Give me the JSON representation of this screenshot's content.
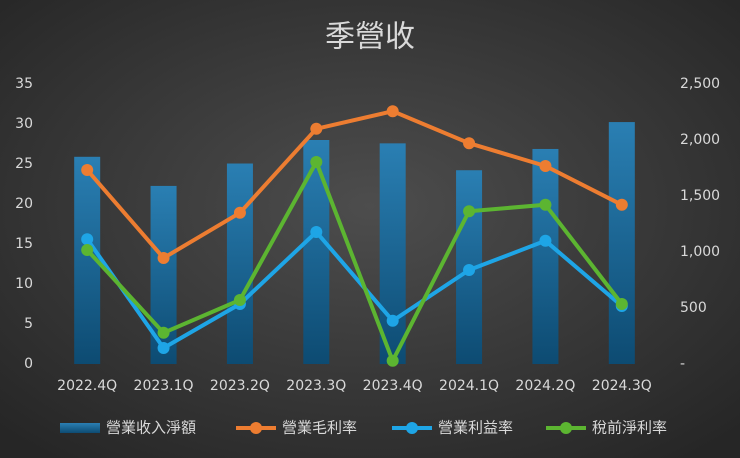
{
  "chart_data": {
    "type": "bar-line",
    "title": "季營收",
    "categories": [
      "2022.4Q",
      "2023.1Q",
      "2023.2Q",
      "2023.3Q",
      "2023.4Q",
      "2024.1Q",
      "2024.2Q",
      "2024.3Q"
    ],
    "series": [
      {
        "name": "營業收入淨額",
        "type": "bar",
        "axis": "y2",
        "color": "#1a6a9a",
        "values": [
          1850,
          1590,
          1790,
          2000,
          1970,
          1730,
          1920,
          2160
        ]
      },
      {
        "name": "營業毛利率",
        "type": "line",
        "color": "#ed7d31",
        "values": [
          24.25,
          13.25,
          18.9,
          29.4,
          31.6,
          27.6,
          24.75,
          19.9
        ]
      },
      {
        "name": "營業利益率",
        "type": "line",
        "color": "#1ea5e6",
        "values": [
          15.6,
          2.0,
          7.5,
          16.5,
          5.4,
          11.75,
          15.4,
          7.25
        ]
      },
      {
        "name": "稅前淨利率",
        "type": "line",
        "color": "#5cb531",
        "values": [
          14.25,
          3.9,
          8.0,
          25.25,
          0.4,
          19.1,
          19.9,
          7.5
        ]
      }
    ],
    "ylim": [
      0,
      35
    ],
    "yticks": [
      0,
      5,
      10,
      15,
      20,
      25,
      30,
      35
    ],
    "y2lim": [
      0,
      2500
    ],
    "y2ticks": [
      {
        "value": 0,
        "label": "-"
      },
      500,
      {
        "value": 1000,
        "label": "1,000"
      },
      {
        "value": 1500,
        "label": "1,500"
      },
      {
        "value": 2000,
        "label": "2,000"
      },
      {
        "value": 2500,
        "label": "2,500"
      }
    ],
    "grid": false,
    "legend": "bottom"
  }
}
